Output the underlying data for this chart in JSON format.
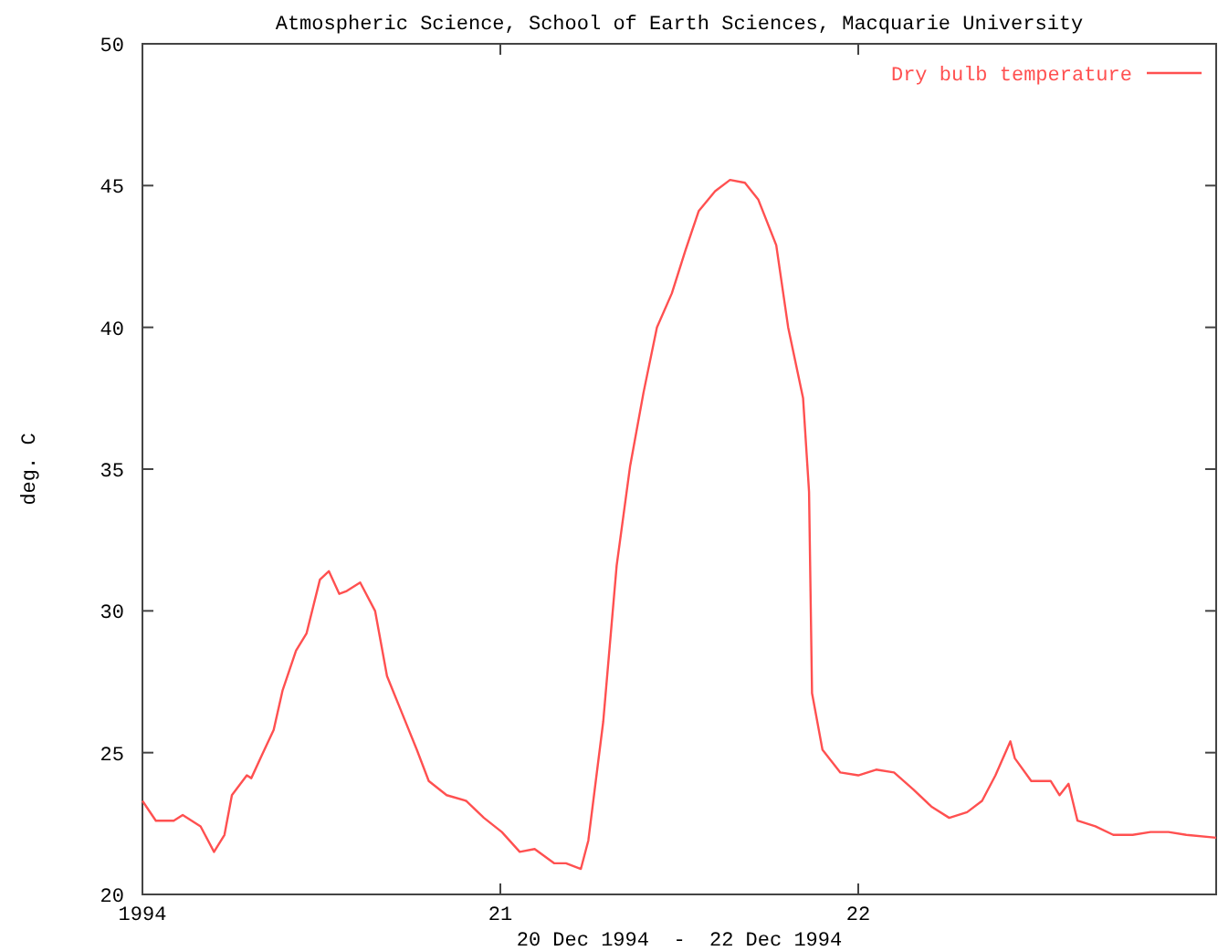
{
  "chart_data": {
    "type": "line",
    "title": "Atmospheric Science, School of Earth Sciences, Macquarie University",
    "xlabel": "20 Dec 1994  -  22 Dec 1994",
    "ylabel": "deg. C",
    "x": [
      "1994-12-20T00:00",
      "1994-12-20T00:54",
      "1994-12-20T02:06",
      "1994-12-20T02:42",
      "1994-12-20T03:54",
      "1994-12-20T04:48",
      "1994-12-20T05:30",
      "1994-12-20T06:00",
      "1994-12-20T07:00",
      "1994-12-20T07:18",
      "1994-12-20T08:00",
      "1994-12-20T08:48",
      "1994-12-20T09:24",
      "1994-12-20T10:18",
      "1994-12-20T11:00",
      "1994-12-20T11:54",
      "1994-12-20T12:30",
      "1994-12-20T13:12",
      "1994-12-20T13:42",
      "1994-12-20T14:36",
      "1994-12-20T15:36",
      "1994-12-20T16:24",
      "1994-12-20T17:24",
      "1994-12-20T18:24",
      "1994-12-20T19:12",
      "1994-12-20T20:24",
      "1994-12-20T21:42",
      "1994-12-20T22:54",
      "1994-12-21T00:06",
      "1994-12-21T01:18",
      "1994-12-21T02:18",
      "1994-12-21T03:36",
      "1994-12-21T04:24",
      "1994-12-21T05:24",
      "1994-12-21T05:54",
      "1994-12-21T06:54",
      "1994-12-21T07:48",
      "1994-12-21T08:42",
      "1994-12-21T09:36",
      "1994-12-21T10:30",
      "1994-12-21T11:30",
      "1994-12-21T12:24",
      "1994-12-21T13:18",
      "1994-12-21T14:24",
      "1994-12-21T15:24",
      "1994-12-21T16:24",
      "1994-12-21T17:18",
      "1994-12-21T18:30",
      "1994-12-21T19:18",
      "1994-12-21T20:18",
      "1994-12-21T20:42",
      "1994-12-21T20:54",
      "1994-12-21T21:36",
      "1994-12-21T22:48",
      "1994-12-22T00:00",
      "1994-12-22T01:12",
      "1994-12-22T02:24",
      "1994-12-22T03:42",
      "1994-12-22T04:54",
      "1994-12-22T06:06",
      "1994-12-22T07:18",
      "1994-12-22T08:18",
      "1994-12-22T09:12",
      "1994-12-22T10:12",
      "1994-12-22T10:30",
      "1994-12-22T11:36",
      "1994-12-22T12:54",
      "1994-12-22T13:30",
      "1994-12-22T14:06",
      "1994-12-22T14:42",
      "1994-12-22T15:54",
      "1994-12-22T17:06",
      "1994-12-22T18:24",
      "1994-12-22T19:36",
      "1994-12-22T20:48",
      "1994-12-22T22:00",
      "1994-12-23T00:00"
    ],
    "series": [
      {
        "name": "Dry bulb temperature",
        "color": "#ff5050",
        "values": [
          23.3,
          22.6,
          22.6,
          22.8,
          22.4,
          21.5,
          22.1,
          23.5,
          24.2,
          24.1,
          24.9,
          25.8,
          27.2,
          28.6,
          29.2,
          31.1,
          31.4,
          30.6,
          30.7,
          31.0,
          30.0,
          27.7,
          26.4,
          25.1,
          24.0,
          23.5,
          23.3,
          22.7,
          22.2,
          21.5,
          21.6,
          21.1,
          21.1,
          20.9,
          21.9,
          26.1,
          31.6,
          35.1,
          37.7,
          40.0,
          41.2,
          42.7,
          44.1,
          44.8,
          45.2,
          45.1,
          44.5,
          42.9,
          40.0,
          37.5,
          34.2,
          27.1,
          25.1,
          24.3,
          24.2,
          24.4,
          24.3,
          23.7,
          23.1,
          22.7,
          22.9,
          23.3,
          24.2,
          25.4,
          24.8,
          24.0,
          24.0,
          23.5,
          23.9,
          22.6,
          22.4,
          22.1,
          22.1,
          22.2,
          22.2,
          22.1,
          22.0
        ]
      }
    ],
    "xlim": [
      "1994-12-20T00:00",
      "1994-12-23T00:00"
    ],
    "xticks": [
      {
        "value": "1994-12-20",
        "label": "1994"
      },
      {
        "value": "1994-12-21",
        "label": "21"
      },
      {
        "value": "1994-12-22",
        "label": "22"
      }
    ],
    "ylim": [
      20,
      50
    ],
    "yticks": [
      20,
      25,
      30,
      35,
      40,
      45,
      50
    ],
    "grid": false,
    "legend": "top right",
    "marker": "none",
    "line_style": "solid"
  }
}
